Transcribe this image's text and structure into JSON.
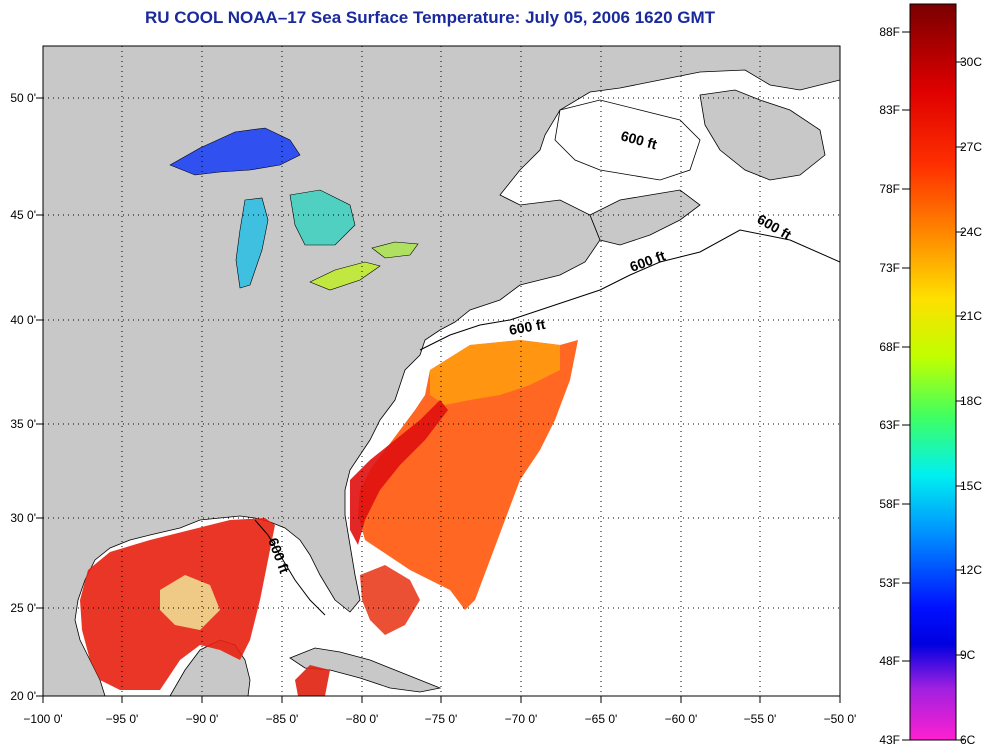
{
  "title": "RU COOL  NOAA–17  Sea Surface Temperature:  July 05, 2006 1620 GMT",
  "lat_labels": [
    "50 0'",
    "45 0'",
    "40 0'",
    "35 0'",
    "30 0'",
    "25 0'",
    "20 0'"
  ],
  "lon_labels": [
    "−100 0'",
    "−95 0'",
    "−90 0'",
    "−85 0'",
    "−80 0'",
    "−75 0'",
    "−70 0'",
    "−65 0'",
    "−60 0'",
    "−55 0'",
    "−50 0'"
  ],
  "depth_contour_labels": [
    "600 ft",
    "600 ft",
    "600 ft",
    "600 ft",
    "600 ft"
  ],
  "colorbar": {
    "fahrenheit": [
      "88F",
      "83F",
      "78F",
      "73F",
      "68F",
      "63F",
      "58F",
      "53F",
      "48F",
      "43F"
    ],
    "celsius": [
      "30C",
      "27C",
      "24C",
      "21C",
      "18C",
      "15C",
      "12C",
      "9C",
      "6C"
    ]
  },
  "colors": {
    "land": "#c8c8c8",
    "ocean_nodata": "#ffffff",
    "title": "#1a2a9c"
  }
}
